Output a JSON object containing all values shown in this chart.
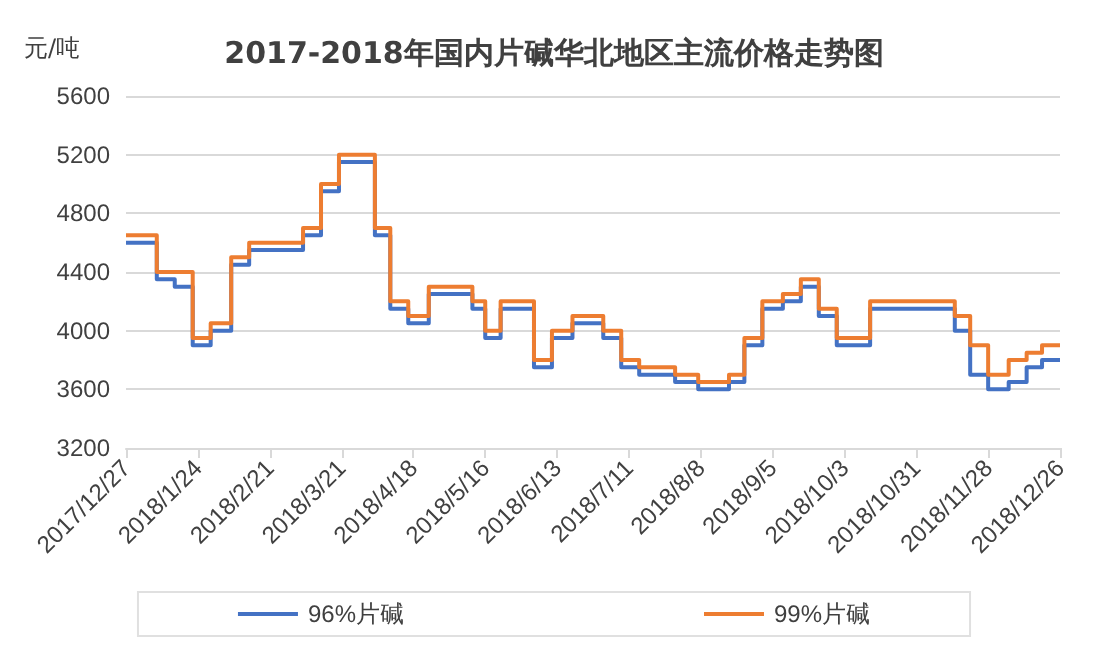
{
  "chart_data": {
    "type": "step",
    "title": "2017-2018年国内片碱华北地区主流价格走势图",
    "ylabel": "元/吨",
    "x": [
      "2017-12-27",
      "2018-01-08",
      "2018-01-15",
      "2018-01-22",
      "2018-01-29",
      "2018-02-06",
      "2018-02-13",
      "2018-03-06",
      "2018-03-13",
      "2018-03-20",
      "2018-04-03",
      "2018-04-09",
      "2018-04-16",
      "2018-04-24",
      "2018-05-11",
      "2018-05-16",
      "2018-05-22",
      "2018-06-04",
      "2018-06-11",
      "2018-06-19",
      "2018-07-01",
      "2018-07-08",
      "2018-07-15",
      "2018-07-29",
      "2018-08-07",
      "2018-08-19",
      "2018-08-25",
      "2018-09-01",
      "2018-09-09",
      "2018-09-16",
      "2018-09-23",
      "2018-09-30",
      "2018-10-13",
      "2018-11-15",
      "2018-11-21",
      "2018-11-28",
      "2018-12-06",
      "2018-12-13",
      "2018-12-19",
      "2018-12-26"
    ],
    "series": [
      {
        "name": "96%片碱",
        "color": "#4472c4",
        "values": [
          4600,
          4350,
          4300,
          3900,
          4000,
          4450,
          4550,
          4650,
          4950,
          5150,
          4650,
          4150,
          4050,
          4250,
          4150,
          3950,
          4150,
          3750,
          3950,
          4050,
          3950,
          3750,
          3700,
          3650,
          3600,
          3650,
          3900,
          4150,
          4200,
          4300,
          4100,
          3900,
          4150,
          4000,
          3700,
          3600,
          3650,
          3750,
          3800,
          3800
        ]
      },
      {
        "name": "99%片碱",
        "color": "#ed7d31",
        "values": [
          4650,
          4400,
          4400,
          3950,
          4050,
          4500,
          4600,
          4700,
          5000,
          5200,
          4700,
          4200,
          4100,
          4300,
          4200,
          4000,
          4200,
          3800,
          4000,
          4100,
          4000,
          3800,
          3750,
          3700,
          3650,
          3700,
          3950,
          4200,
          4250,
          4350,
          4150,
          3950,
          4200,
          4100,
          3900,
          3700,
          3800,
          3850,
          3900,
          3900
        ]
      }
    ],
    "xlim": [
      "2017-12-27",
      "2018-12-26"
    ],
    "xticks": [
      {
        "value": "2017-12-27",
        "label": "2017/12/27"
      },
      {
        "value": "2018-01-24",
        "label": "2018/1/24"
      },
      {
        "value": "2018-02-21",
        "label": "2018/2/21"
      },
      {
        "value": "2018-03-21",
        "label": "2018/3/21"
      },
      {
        "value": "2018-04-18",
        "label": "2018/4/18"
      },
      {
        "value": "2018-05-16",
        "label": "2018/5/16"
      },
      {
        "value": "2018-06-13",
        "label": "2018/6/13"
      },
      {
        "value": "2018-07-11",
        "label": "2018/7/11"
      },
      {
        "value": "2018-08-08",
        "label": "2018/8/8"
      },
      {
        "value": "2018-09-05",
        "label": "2018/9/5"
      },
      {
        "value": "2018-10-03",
        "label": "2018/10/3"
      },
      {
        "value": "2018-10-31",
        "label": "2018/10/31"
      },
      {
        "value": "2018-11-28",
        "label": "2018/11/28"
      },
      {
        "value": "2018-12-26",
        "label": "2018/12/26"
      }
    ],
    "ylim": [
      3200,
      5600
    ],
    "yticks": [
      3200,
      3600,
      4000,
      4400,
      4800,
      5200,
      5600
    ],
    "grid": "y",
    "legend": "bottom",
    "marker": "none"
  }
}
